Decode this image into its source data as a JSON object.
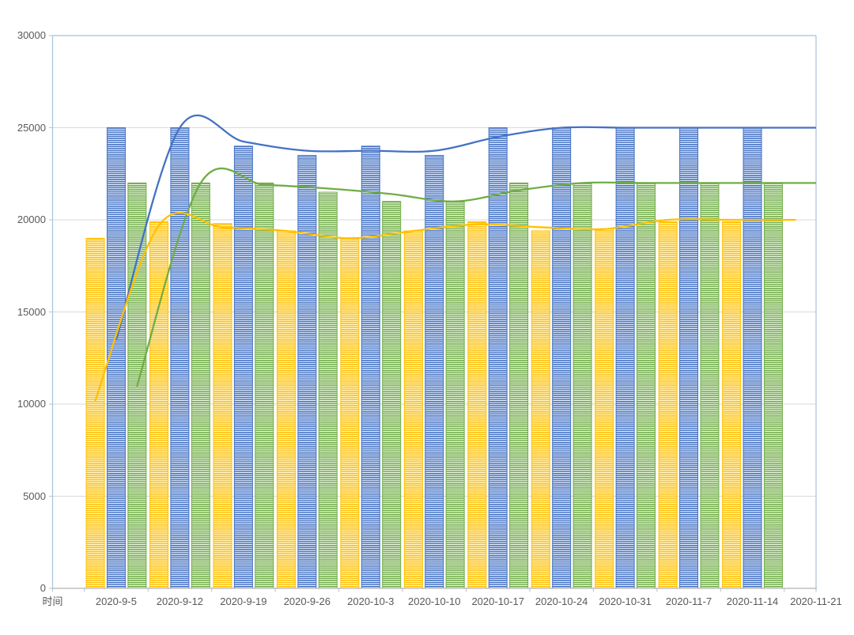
{
  "chart_data": {
    "type": "combo-bar-line",
    "title": "",
    "legend": "none",
    "grid": true,
    "categories": [
      "时间",
      "2020-9-5",
      "2020-9-12",
      "2020-9-19",
      "2020-9-26",
      "2020-10-3",
      "2020-10-10",
      "2020-10-17",
      "2020-10-24",
      "2020-10-31",
      "2020-11-7",
      "2020-11-14",
      "2020-11-21"
    ],
    "x_axis": {
      "first_label": "时间",
      "labels_on_tick_marks": true
    },
    "y_axis": {
      "min": 0,
      "max": 30000,
      "step": 5000,
      "tick_labels": [
        "0",
        "5000",
        "10000",
        "15000",
        "20000",
        "25000",
        "30000"
      ]
    },
    "series": [
      {
        "name": "bar-yellow",
        "type": "bar",
        "color": "#FFC000",
        "pattern": "horizontal-stripes",
        "values": [
          null,
          19000,
          19900,
          19800,
          19400,
          19000,
          19400,
          19900,
          19400,
          19500,
          19900,
          19900,
          null
        ]
      },
      {
        "name": "bar-blue",
        "type": "bar",
        "color": "#4472C4",
        "pattern": "horizontal-stripes",
        "values": [
          null,
          25000,
          25000,
          24000,
          23500,
          24000,
          23500,
          25000,
          25000,
          25000,
          25000,
          25000,
          null
        ]
      },
      {
        "name": "bar-green",
        "type": "bar",
        "color": "#70AD47",
        "pattern": "horizontal-stripes",
        "values": [
          null,
          22000,
          22000,
          22000,
          21500,
          21000,
          21000,
          22000,
          22000,
          22000,
          22000,
          22000,
          null
        ]
      },
      {
        "name": "line-blue",
        "type": "line",
        "color": "#4472C4",
        "align": "bar-blue",
        "smooth": true,
        "values": [
          null,
          13500,
          25000,
          24250,
          23750,
          23750,
          23750,
          24500,
          25000,
          25000,
          25000,
          25000,
          25000
        ]
      },
      {
        "name": "line-green",
        "type": "line",
        "color": "#70AD47",
        "align": "bar-green",
        "smooth": true,
        "values": [
          null,
          11000,
          22000,
          21900,
          21700,
          21400,
          21000,
          21600,
          22000,
          22000,
          22000,
          22000,
          22000
        ]
      },
      {
        "name": "line-yellow",
        "type": "line",
        "color": "#FFC000",
        "align": "bar-yellow",
        "smooth": true,
        "values": [
          null,
          10200,
          19700,
          19600,
          19400,
          19000,
          19400,
          19750,
          19600,
          19500,
          20000,
          20000,
          20000
        ]
      }
    ],
    "colors": {
      "gridline": "#D9D9D9",
      "axis_line": "#BFBFBF",
      "tick": "#BFBFBF",
      "plot_border": "#A8C2DE",
      "label": "#595959",
      "background": "#FFFFFF"
    }
  }
}
